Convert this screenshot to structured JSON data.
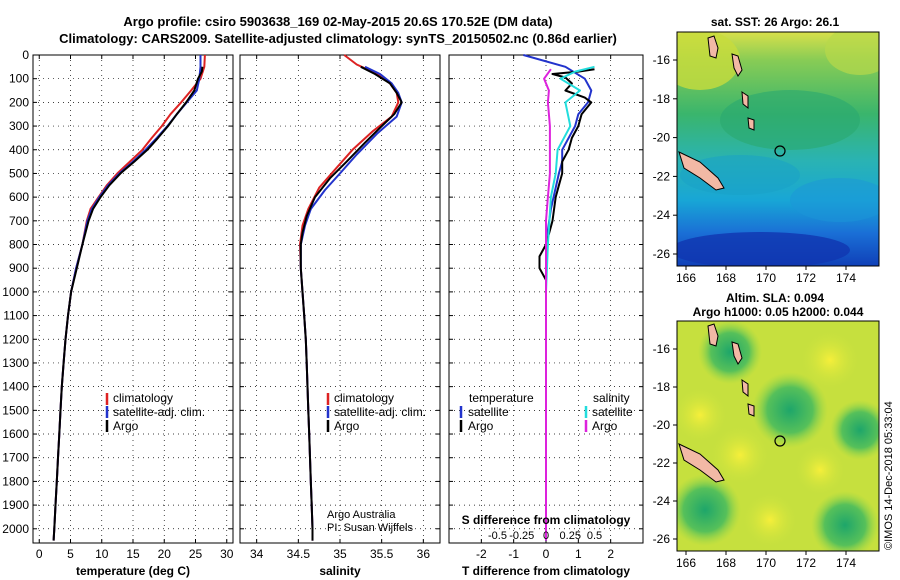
{
  "header": {
    "line1": "Argo profile: csiro 5903638_169 02-May-2015 20.6S 170.52E (DM data)",
    "line2": "Climatology: CARS2009. Satellite-adjusted climatology: synTS_20150502.nc (0.86d earlier)"
  },
  "colors": {
    "climatology": "#dd2222",
    "satellite": "#2233cc",
    "argo": "#000000",
    "salt_sat": "#22dddd",
    "salt_argo": "#dd22dd"
  },
  "legend": {
    "climatology": "climatology",
    "satellite_adj": "satellite-adj. clim.",
    "argo": "Argo",
    "temperature_head": "temperature",
    "salinity_head": "salinity",
    "satellite": "satellite"
  },
  "credits": {
    "line1": "Argo Australia",
    "line2": "PI: Susan Wijffels"
  },
  "diff_labels": {
    "s_title": "S difference from climatology",
    "s_ticks": [
      "-0.5",
      "-0.25",
      "0",
      "0.25",
      "0.5"
    ]
  },
  "maps": {
    "sst_title": "sat. SST: 26 Argo: 26.1",
    "sla_title1": "Altim. SLA: 0.094",
    "sla_title2": "Argo h1000: 0.05 h2000: 0.044",
    "lat_ticks": [
      "-16",
      "-18",
      "-20",
      "-22",
      "-24",
      "-26"
    ],
    "lon_ticks": [
      "166",
      "168",
      "170",
      "172",
      "174"
    ]
  },
  "stamp": "©IMOS 14-Dec-2018 05:33:04",
  "chart_data": [
    {
      "type": "line",
      "xlabel": "temperature (deg C)",
      "ylabel": "",
      "xlim": [
        -1,
        31
      ],
      "ylim": [
        2060,
        0
      ],
      "xticks": [
        "0",
        "5",
        "10",
        "15",
        "20",
        "25",
        "30"
      ],
      "yticks": [
        "0",
        "100",
        "200",
        "300",
        "400",
        "500",
        "600",
        "700",
        "800",
        "900",
        "1000",
        "1100",
        "1200",
        "1300",
        "1400",
        "1500",
        "1600",
        "1700",
        "1800",
        "1900",
        "2000"
      ],
      "series": [
        {
          "name": "climatology",
          "points": [
            [
              26.5,
              0
            ],
            [
              26.4,
              50
            ],
            [
              25.8,
              100
            ],
            [
              24.3,
              150
            ],
            [
              22.7,
              200
            ],
            [
              21,
              250
            ],
            [
              19.6,
              300
            ],
            [
              18,
              350
            ],
            [
              16.5,
              400
            ],
            [
              14.5,
              450
            ],
            [
              12.5,
              500
            ],
            [
              10.8,
              550
            ],
            [
              9.5,
              600
            ],
            [
              8.2,
              650
            ],
            [
              7.6,
              700
            ],
            [
              6.9,
              800
            ],
            [
              5.9,
              900
            ],
            [
              5.1,
              1000
            ],
            [
              4.6,
              1100
            ],
            [
              4.2,
              1200
            ],
            [
              3.9,
              1300
            ],
            [
              3.6,
              1400
            ],
            [
              3.4,
              1500
            ],
            [
              3.2,
              1600
            ],
            [
              3,
              1700
            ],
            [
              2.8,
              1800
            ],
            [
              2.6,
              1900
            ],
            [
              2.4,
              2000
            ],
            [
              2.3,
              2050
            ]
          ]
        },
        {
          "name": "satellite-adj. clim.",
          "points": [
            [
              25.8,
              0
            ],
            [
              25.8,
              50
            ],
            [
              25.6,
              100
            ],
            [
              25.2,
              150
            ],
            [
              23.6,
              200
            ],
            [
              22,
              250
            ],
            [
              20.5,
              300
            ],
            [
              18.8,
              350
            ],
            [
              17,
              400
            ],
            [
              15,
              450
            ],
            [
              12.8,
              500
            ],
            [
              11,
              550
            ],
            [
              9.6,
              600
            ],
            [
              8.4,
              650
            ],
            [
              7.7,
              700
            ],
            [
              6.9,
              800
            ],
            [
              5.9,
              900
            ],
            [
              5.1,
              1000
            ],
            [
              4.6,
              1100
            ],
            [
              4.2,
              1200
            ],
            [
              3.9,
              1300
            ],
            [
              3.6,
              1400
            ],
            [
              3.4,
              1500
            ],
            [
              3.2,
              1600
            ],
            [
              3,
              1700
            ],
            [
              2.8,
              1800
            ],
            [
              2.6,
              1900
            ],
            [
              2.4,
              2000
            ],
            [
              2.3,
              2050
            ]
          ]
        },
        {
          "name": "Argo",
          "points": [
            [
              26.1,
              50
            ],
            [
              26,
              70
            ],
            [
              25.4,
              100
            ],
            [
              24.8,
              150
            ],
            [
              23.5,
              200
            ],
            [
              22,
              250
            ],
            [
              20.6,
              300
            ],
            [
              19,
              350
            ],
            [
              17.3,
              400
            ],
            [
              15.2,
              450
            ],
            [
              13,
              500
            ],
            [
              11.2,
              550
            ],
            [
              9.8,
              600
            ],
            [
              8.6,
              650
            ],
            [
              7.9,
              700
            ],
            [
              6.9,
              800
            ],
            [
              6,
              900
            ],
            [
              5.1,
              1000
            ],
            [
              4.6,
              1100
            ],
            [
              4.2,
              1200
            ],
            [
              3.9,
              1300
            ],
            [
              3.6,
              1400
            ],
            [
              3.4,
              1500
            ],
            [
              3.2,
              1600
            ],
            [
              3,
              1700
            ],
            [
              2.8,
              1800
            ],
            [
              2.6,
              1900
            ],
            [
              2.4,
              2000
            ],
            [
              2.3,
              2050
            ]
          ]
        }
      ]
    },
    {
      "type": "line",
      "xlabel": "salinity",
      "xlim": [
        33.8,
        36.2
      ],
      "ylim": [
        2060,
        0
      ],
      "xticks": [
        "34",
        "34.5",
        "35",
        "35.5",
        "36"
      ],
      "series": [
        {
          "name": "climatology",
          "points": [
            [
              35.05,
              0
            ],
            [
              35.2,
              40
            ],
            [
              35.45,
              80
            ],
            [
              35.6,
              120
            ],
            [
              35.68,
              160
            ],
            [
              35.7,
              200
            ],
            [
              35.62,
              260
            ],
            [
              35.4,
              320
            ],
            [
              35.15,
              400
            ],
            [
              34.95,
              480
            ],
            [
              34.75,
              560
            ],
            [
              34.62,
              650
            ],
            [
              34.55,
              720
            ],
            [
              34.52,
              800
            ],
            [
              34.53,
              900
            ],
            [
              34.55,
              1000
            ],
            [
              34.57,
              1100
            ],
            [
              34.59,
              1200
            ],
            [
              34.6,
              1300
            ],
            [
              34.61,
              1400
            ],
            [
              34.62,
              1500
            ],
            [
              34.63,
              1600
            ],
            [
              34.64,
              1700
            ],
            [
              34.65,
              1800
            ],
            [
              34.66,
              1900
            ],
            [
              34.67,
              2000
            ],
            [
              34.67,
              2050
            ]
          ]
        },
        {
          "name": "satellite-adj. clim.",
          "points": [
            [
              35.3,
              50
            ],
            [
              35.48,
              80
            ],
            [
              35.62,
              120
            ],
            [
              35.7,
              160
            ],
            [
              35.74,
              200
            ],
            [
              35.68,
              260
            ],
            [
              35.45,
              330
            ],
            [
              35.2,
              420
            ],
            [
              35,
              500
            ],
            [
              34.82,
              570
            ],
            [
              34.65,
              650
            ],
            [
              34.58,
              720
            ],
            [
              34.53,
              800
            ],
            [
              34.53,
              900
            ],
            [
              34.55,
              1000
            ],
            [
              34.57,
              1100
            ],
            [
              34.59,
              1200
            ],
            [
              34.6,
              1300
            ],
            [
              34.61,
              1400
            ],
            [
              34.62,
              1500
            ],
            [
              34.63,
              1600
            ],
            [
              34.64,
              1700
            ],
            [
              34.65,
              1800
            ],
            [
              34.66,
              1900
            ],
            [
              34.67,
              2000
            ],
            [
              34.67,
              2050
            ]
          ]
        },
        {
          "name": "Argo",
          "points": [
            [
              35.25,
              50
            ],
            [
              35.42,
              80
            ],
            [
              35.6,
              120
            ],
            [
              35.68,
              160
            ],
            [
              35.74,
              200
            ],
            [
              35.65,
              250
            ],
            [
              35.5,
              300
            ],
            [
              35.3,
              370
            ],
            [
              35.08,
              450
            ],
            [
              34.88,
              520
            ],
            [
              34.7,
              600
            ],
            [
              34.6,
              680
            ],
            [
              34.55,
              750
            ],
            [
              34.53,
              800
            ],
            [
              34.53,
              900
            ],
            [
              34.55,
              1000
            ],
            [
              34.57,
              1100
            ],
            [
              34.59,
              1200
            ],
            [
              34.6,
              1300
            ],
            [
              34.61,
              1400
            ],
            [
              34.62,
              1500
            ],
            [
              34.63,
              1600
            ],
            [
              34.64,
              1700
            ],
            [
              34.65,
              1800
            ],
            [
              34.66,
              1900
            ],
            [
              34.67,
              2000
            ],
            [
              34.67,
              2050
            ]
          ]
        }
      ]
    },
    {
      "type": "line",
      "xlabel": "T difference from climatology",
      "xlim": [
        -3,
        3
      ],
      "ylim": [
        2060,
        0
      ],
      "xticks": [
        "-2",
        "-1",
        "0",
        "1",
        "2"
      ],
      "s_xlim": [
        -1,
        1
      ],
      "series": [
        {
          "name": "temperature satellite",
          "axis": "T",
          "points": [
            [
              -0.7,
              0
            ],
            [
              0.6,
              50
            ],
            [
              1.2,
              100
            ],
            [
              1.4,
              150
            ],
            [
              1.3,
              200
            ],
            [
              1,
              250
            ],
            [
              0.9,
              300
            ],
            [
              0.5,
              400
            ],
            [
              0.5,
              450
            ],
            [
              0.4,
              500
            ],
            [
              0.3,
              560
            ],
            [
              0.15,
              650
            ],
            [
              0.1,
              700
            ],
            [
              0,
              800
            ],
            [
              0,
              900
            ],
            [
              0,
              1000
            ],
            [
              0,
              1200
            ],
            [
              0,
              1500
            ],
            [
              0,
              2050
            ]
          ]
        },
        {
          "name": "temperature Argo",
          "axis": "T",
          "points": [
            [
              1.5,
              60
            ],
            [
              1,
              70
            ],
            [
              0.2,
              80
            ],
            [
              0.6,
              95
            ],
            [
              0.8,
              120
            ],
            [
              0.6,
              150
            ],
            [
              1.2,
              180
            ],
            [
              1.4,
              200
            ],
            [
              1.1,
              250
            ],
            [
              1,
              300
            ],
            [
              0.8,
              350
            ],
            [
              0.7,
              400
            ],
            [
              0.5,
              450
            ],
            [
              0.5,
              500
            ],
            [
              0.4,
              550
            ],
            [
              0.3,
              600
            ],
            [
              0.2,
              700
            ],
            [
              0,
              800
            ],
            [
              -0.2,
              850
            ],
            [
              -0.2,
              900
            ],
            [
              0,
              950
            ],
            [
              0,
              1000
            ],
            [
              0,
              1100
            ],
            [
              0,
              1300
            ],
            [
              0,
              2050
            ]
          ]
        },
        {
          "name": "salinity satellite",
          "axis": "S",
          "points": [
            [
              0.5,
              50
            ],
            [
              0.3,
              70
            ],
            [
              0.15,
              100
            ],
            [
              0.35,
              150
            ],
            [
              0.2,
              200
            ],
            [
              0.25,
              300
            ],
            [
              0.12,
              400
            ],
            [
              0.1,
              500
            ],
            [
              0.05,
              600
            ],
            [
              0.02,
              800
            ],
            [
              0,
              1000
            ],
            [
              0,
              2050
            ]
          ]
        },
        {
          "name": "salinity Argo",
          "axis": "S",
          "points": [
            [
              0.05,
              60
            ],
            [
              -0.02,
              100
            ],
            [
              0.03,
              150
            ],
            [
              0.02,
              200
            ],
            [
              0.04,
              300
            ],
            [
              0.04,
              400
            ],
            [
              0.04,
              500
            ],
            [
              0.02,
              600
            ],
            [
              0,
              700
            ],
            [
              0,
              800
            ],
            [
              0,
              900
            ],
            [
              0,
              2050
            ]
          ]
        }
      ]
    }
  ]
}
